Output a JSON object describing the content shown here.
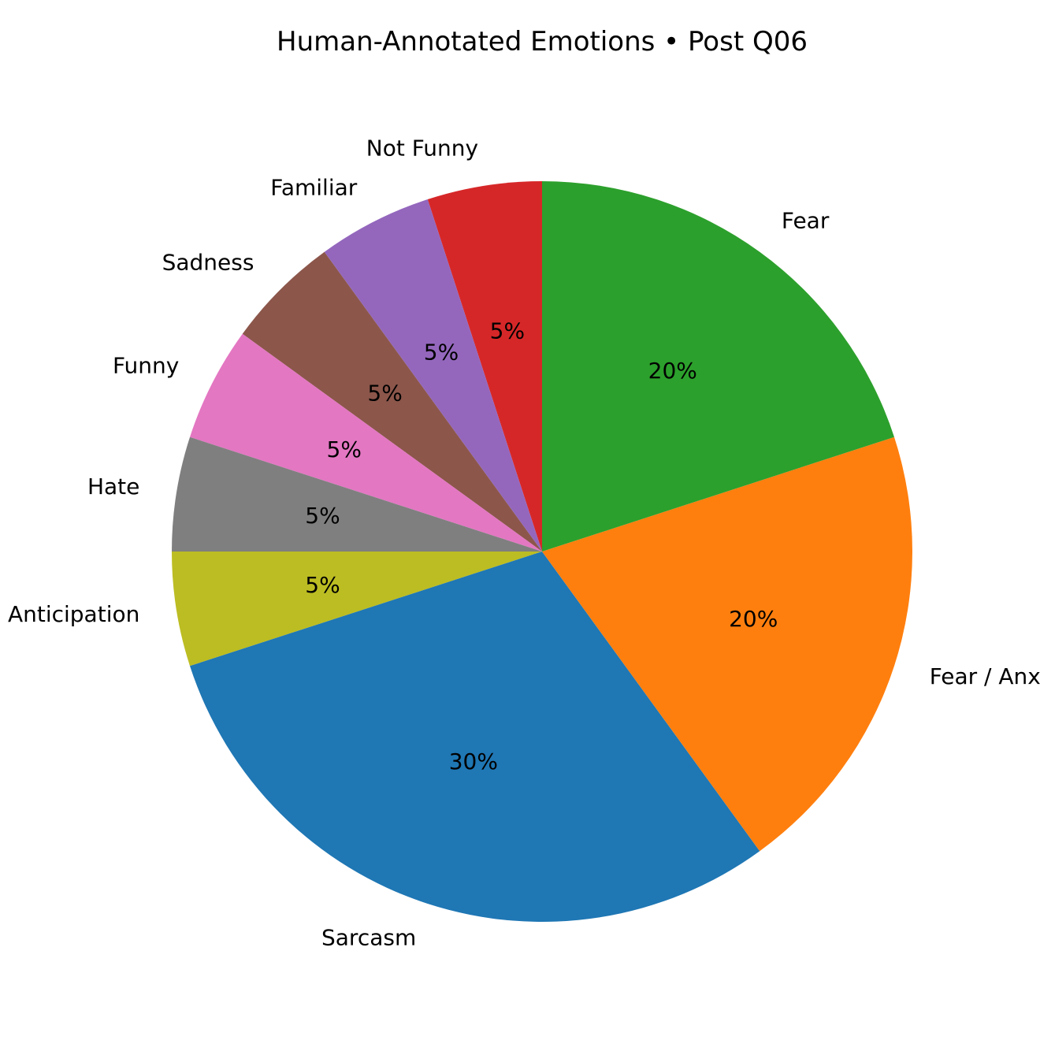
{
  "chart_data": {
    "type": "pie",
    "title": "Human-Annotated Emotions • Post Q06",
    "start_angle_deg": 90,
    "direction": "counterclockwise",
    "legend": "none",
    "slices": [
      {
        "label": "Not Funny",
        "value": 5,
        "pct_label": "5%",
        "color": "#d62728"
      },
      {
        "label": "Familiar",
        "value": 5,
        "pct_label": "5%",
        "color": "#9467bd"
      },
      {
        "label": "Sadness",
        "value": 5,
        "pct_label": "5%",
        "color": "#8c564b"
      },
      {
        "label": "Funny",
        "value": 5,
        "pct_label": "5%",
        "color": "#e377c2"
      },
      {
        "label": "Hate",
        "value": 5,
        "pct_label": "5%",
        "color": "#7f7f7f"
      },
      {
        "label": "Anticipation",
        "value": 5,
        "pct_label": "5%",
        "color": "#bcbd22"
      },
      {
        "label": "Sarcasm",
        "value": 30,
        "pct_label": "30%",
        "color": "#1f77b4"
      },
      {
        "label": "Fear / Anxiety",
        "value": 20,
        "pct_label": "20%",
        "color": "#ff7f0e"
      },
      {
        "label": "Fear",
        "value": 20,
        "pct_label": "20%",
        "color": "#2ca02c"
      }
    ]
  }
}
